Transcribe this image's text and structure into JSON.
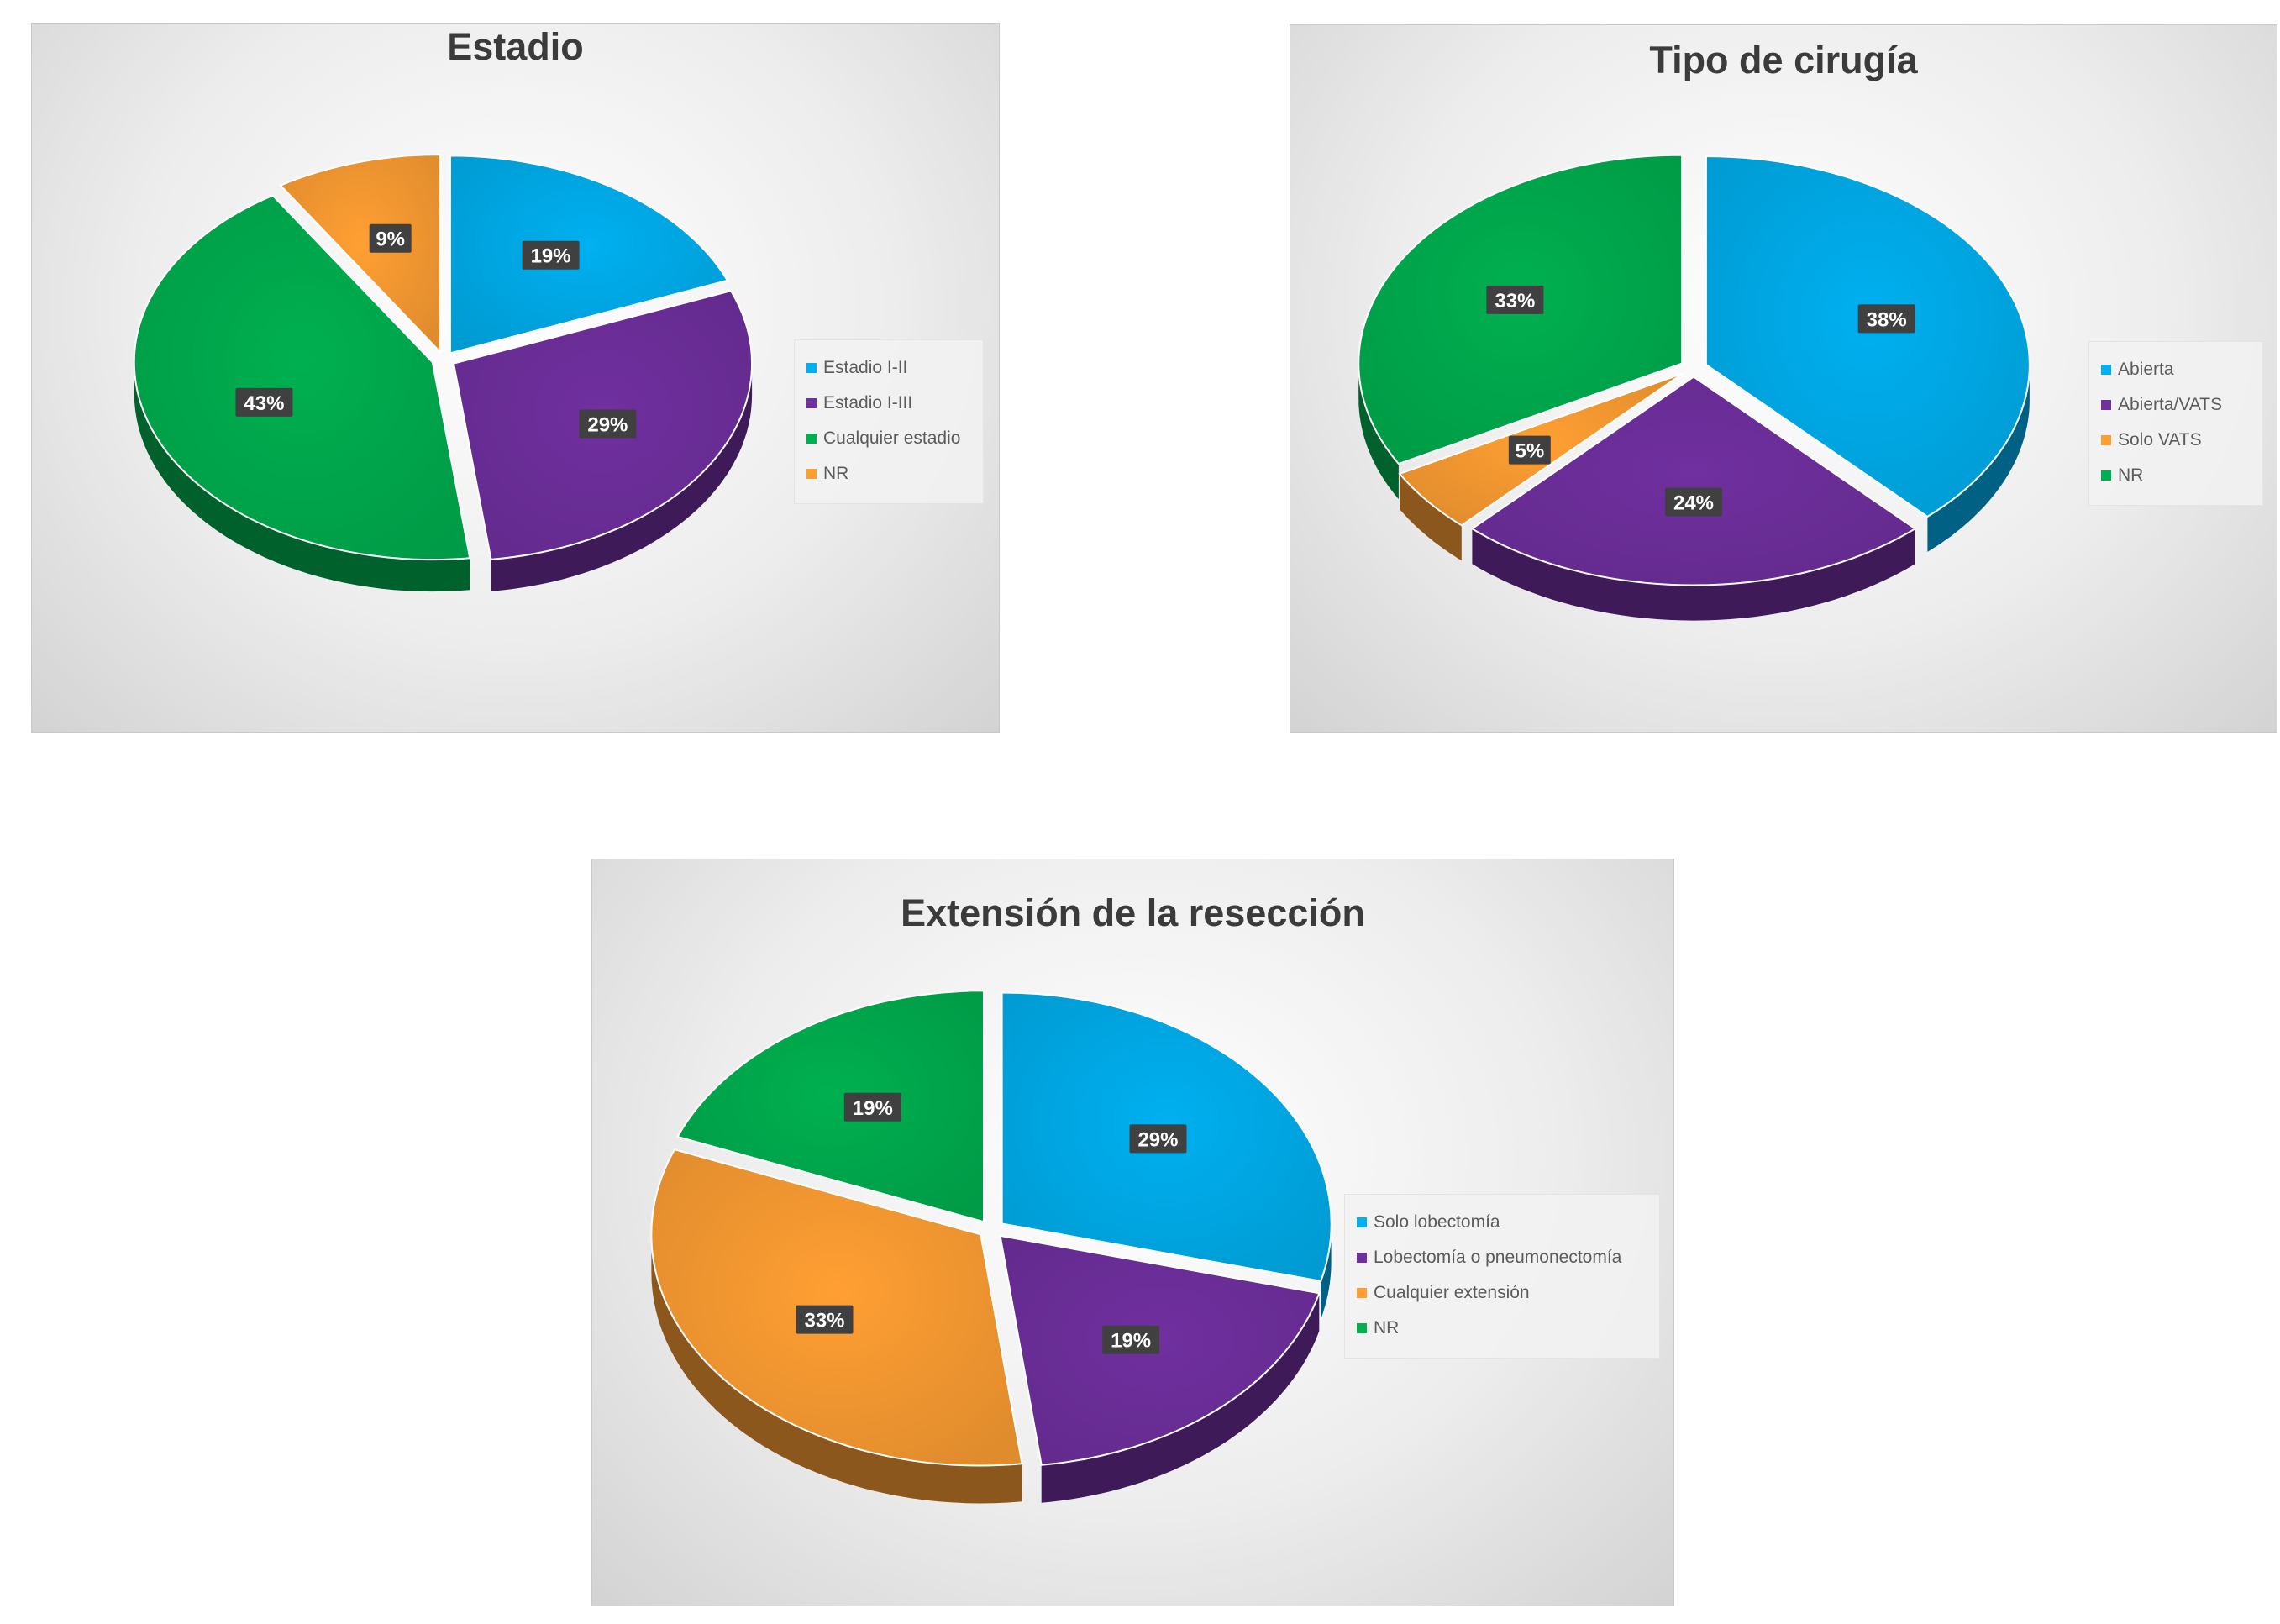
{
  "colors": {
    "blue": "#00b0f0",
    "purple": "#7030a0",
    "green": "#00b050",
    "orange": "#ff9f33"
  },
  "chart_data": [
    {
      "type": "pie",
      "title": "Estadio",
      "categories": [
        "Estadio I-II",
        "Estadio I-III",
        "Cualquier estadio",
        "NR"
      ],
      "values": [
        19,
        29,
        43,
        9
      ],
      "labels": [
        "19%",
        "29%",
        "43%",
        "9%"
      ],
      "colors": [
        "#00b0f0",
        "#7030a0",
        "#00b050",
        "#ff9f33"
      ],
      "style": "3d-exploded",
      "legend_position": "right"
    },
    {
      "type": "pie",
      "title": "Tipo de cirugía",
      "categories": [
        "Abierta",
        "Abierta/VATS",
        "Solo VATS",
        "NR"
      ],
      "values": [
        38,
        24,
        5,
        33
      ],
      "labels": [
        "38%",
        "24%",
        "5%",
        "33%"
      ],
      "colors": [
        "#00b0f0",
        "#7030a0",
        "#ff9f33",
        "#00b050"
      ],
      "style": "3d-exploded",
      "legend_position": "right"
    },
    {
      "type": "pie",
      "title": "Extensión de la resección",
      "categories": [
        "Solo lobectomía",
        "Lobectomía o pneumonectomía",
        "Cualquier extensión",
        "NR"
      ],
      "values": [
        29,
        19,
        33,
        19
      ],
      "labels": [
        "29%",
        "19%",
        "33%",
        "19%"
      ],
      "colors": [
        "#00b0f0",
        "#7030a0",
        "#ff9f33",
        "#00b050"
      ],
      "style": "3d-exploded",
      "legend_position": "right"
    }
  ]
}
